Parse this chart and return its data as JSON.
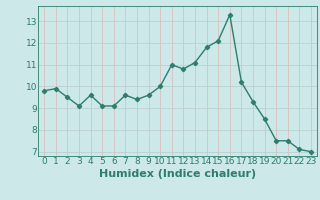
{
  "x": [
    0,
    1,
    2,
    3,
    4,
    5,
    6,
    7,
    8,
    9,
    10,
    11,
    12,
    13,
    14,
    15,
    16,
    17,
    18,
    19,
    20,
    21,
    22,
    23
  ],
  "y": [
    9.8,
    9.9,
    9.5,
    9.1,
    9.6,
    9.1,
    9.1,
    9.6,
    9.4,
    9.6,
    10.0,
    11.0,
    10.8,
    11.1,
    11.8,
    12.1,
    13.3,
    10.2,
    9.3,
    8.5,
    7.5,
    7.5,
    7.1,
    7.0
  ],
  "line_color": "#2e7d6e",
  "marker": "D",
  "marker_size": 2.2,
  "bg_color": "#cce8e8",
  "grid_major_color": "#b8cccc",
  "grid_minor_color": "#dbb8b8",
  "xlabel": "Humidex (Indice chaleur)",
  "xlim": [
    -0.5,
    23.5
  ],
  "ylim": [
    6.8,
    13.7
  ],
  "yticks": [
    7,
    8,
    9,
    10,
    11,
    12,
    13
  ],
  "xticks": [
    0,
    1,
    2,
    3,
    4,
    5,
    6,
    7,
    8,
    9,
    10,
    11,
    12,
    13,
    14,
    15,
    16,
    17,
    18,
    19,
    20,
    21,
    22,
    23
  ],
  "tick_fontsize": 6.5,
  "xlabel_fontsize": 8.0,
  "tick_color": "#2e7d6e",
  "line_width": 1.0
}
